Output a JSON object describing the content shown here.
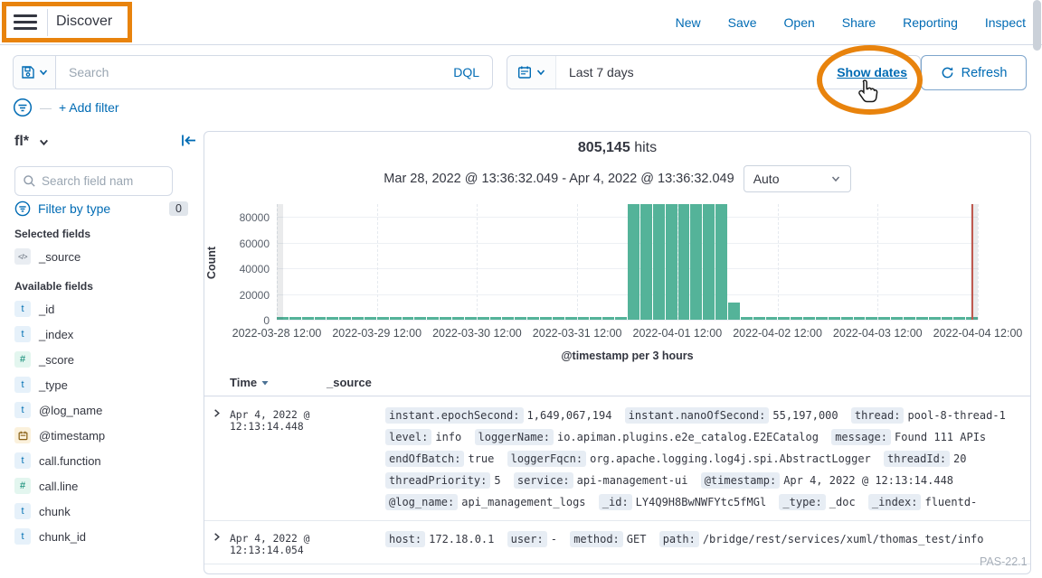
{
  "accent_color": "#006BB4",
  "annotation_color": "#E8830D",
  "header": {
    "title": "Discover",
    "nav": [
      "New",
      "Save",
      "Open",
      "Share",
      "Reporting",
      "Inspect"
    ]
  },
  "query_bar": {
    "search_placeholder": "Search",
    "language_label": "DQL",
    "date_value": "Last 7 days",
    "show_dates_label": "Show dates",
    "refresh_label": "Refresh"
  },
  "filter_bar": {
    "add_filter_label": "+ Add filter"
  },
  "sidebar": {
    "index_pattern": "fl*",
    "field_search_placeholder": "Search field nam",
    "filter_by_type_label": "Filter by type",
    "filter_count": "0",
    "selected_heading": "Selected fields",
    "selected_fields": [
      {
        "name": "_source",
        "type": "source"
      }
    ],
    "available_heading": "Available fields",
    "available_fields": [
      {
        "name": "_id",
        "type": "string"
      },
      {
        "name": "_index",
        "type": "string"
      },
      {
        "name": "_score",
        "type": "number"
      },
      {
        "name": "_type",
        "type": "string"
      },
      {
        "name": "@log_name",
        "type": "string"
      },
      {
        "name": "@timestamp",
        "type": "date"
      },
      {
        "name": "call.function",
        "type": "string"
      },
      {
        "name": "call.line",
        "type": "number"
      },
      {
        "name": "chunk",
        "type": "string"
      },
      {
        "name": "chunk_id",
        "type": "string"
      }
    ]
  },
  "results": {
    "hits_count": "805,145",
    "hits_label": "hits",
    "time_range": "Mar 28, 2022 @ 13:36:32.049 - Apr 4, 2022 @ 13:36:32.049",
    "interval_selected": "Auto"
  },
  "chart_data": {
    "type": "bar",
    "title": "",
    "xlabel": "@timestamp per 3 hours",
    "ylabel": "Count",
    "bar_color": "#54B399",
    "y_ticks": [
      0,
      20000,
      40000,
      60000,
      80000
    ],
    "y_max": 90000,
    "x_ticks": [
      "2022-03-28 12:00",
      "2022-03-29 12:00",
      "2022-03-30 12:00",
      "2022-03-31 12:00",
      "2022-04-01 12:00",
      "2022-04-02 12:00",
      "2022-04-03 12:00",
      "2022-04-04 12:00"
    ],
    "bucket_interval_hours": 3,
    "x_start": "2022-03-28 12:00",
    "now_marker": "2022-04-04 13:36",
    "values": [
      1400,
      1500,
      1450,
      1500,
      1900,
      1500,
      1450,
      1500,
      1550,
      1500,
      1450,
      1500,
      1500,
      1450,
      1500,
      1550,
      1500,
      1450,
      1500,
      1900,
      1500,
      1450,
      2200,
      1500,
      1500,
      1600,
      1500,
      1600,
      94000,
      94000,
      94000,
      94000,
      94000,
      94000,
      94000,
      94000,
      13500,
      1400,
      1450,
      1500,
      1400,
      1500,
      1450,
      2400,
      1500,
      1450,
      1500,
      1550,
      1500,
      1450,
      1500,
      1550,
      1500,
      1450,
      1500,
      1400
    ]
  },
  "table": {
    "time_column": "Time",
    "source_column": "_source",
    "rows": [
      {
        "time": "Apr 4, 2022 @ 12:13:14.448",
        "pairs": [
          [
            "instant.epochSecond",
            "1,649,067,194"
          ],
          [
            "instant.nanoOfSecond",
            "55,197,000"
          ],
          [
            "thread",
            "pool-8-thread-1"
          ],
          [
            "level",
            "info"
          ],
          [
            "loggerName",
            "io.apiman.plugins.e2e_catalog.E2ECatalog"
          ],
          [
            "message",
            "Found 111 APIs"
          ],
          [
            "endOfBatch",
            "true"
          ],
          [
            "loggerFqcn",
            "org.apache.logging.log4j.spi.AbstractLogger"
          ],
          [
            "threadId",
            "20"
          ],
          [
            "threadPriority",
            "5"
          ],
          [
            "service",
            "api-management-ui"
          ],
          [
            "@timestamp",
            "Apr 4, 2022 @ 12:13:14.448"
          ],
          [
            "@log_name",
            "api_management_logs"
          ],
          [
            "_id",
            "LY4Q9H8BwNWFYtc5fMGl"
          ],
          [
            "_type",
            "_doc"
          ],
          [
            "_index",
            "fluentd-"
          ]
        ]
      },
      {
        "time": "Apr 4, 2022 @ 12:13:14.054",
        "pairs": [
          [
            "host",
            "172.18.0.1"
          ],
          [
            "user",
            "-"
          ],
          [
            "method",
            "GET"
          ],
          [
            "path",
            "/bridge/rest/services/xuml/thomas_test/info"
          ]
        ]
      }
    ]
  },
  "footer": {
    "watermark": "PAS-22.1"
  }
}
